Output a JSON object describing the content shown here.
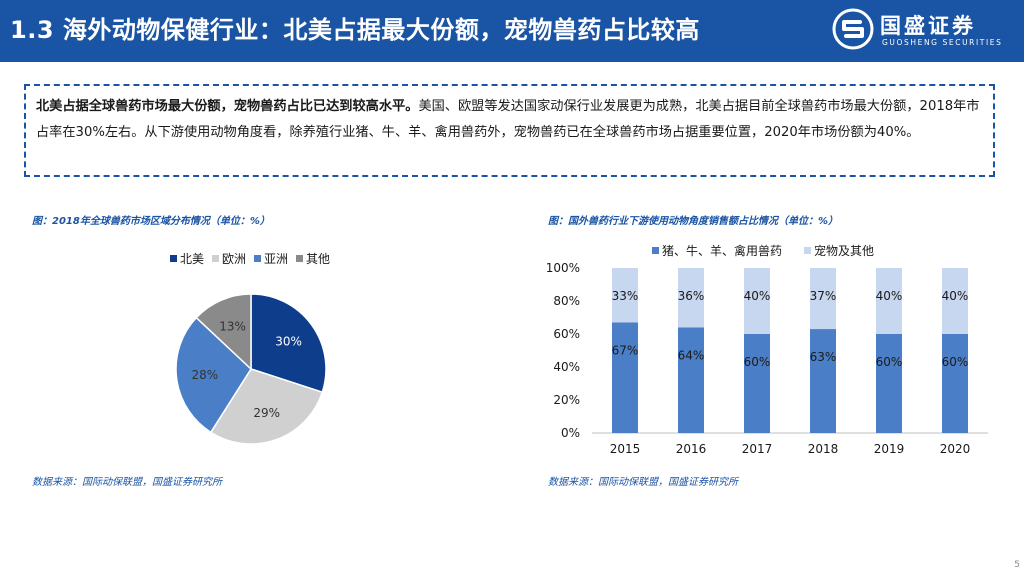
{
  "header": {
    "title": "1.3 海外动物保健行业：北美占据最大份额，宠物兽药占比较高",
    "logo_cn": "国盛证券",
    "logo_en": "GUOSHENG SECURITIES"
  },
  "summary": {
    "bold": "北美占据全球兽药市场最大份额，宠物兽药占比已达到较高水平。",
    "text": "美国、欧盟等发达国家动保行业发展更为成熟，北美占据目前全球兽药市场最大份额，2018年市占率在30%左右。从下游使用动物角度看，除养殖行业猪、牛、羊、禽用兽药外，宠物兽药已在全球兽药市场占据重要位置，2020年市场份额为40%。"
  },
  "left_chart": {
    "caption": "图：2018年全球兽药市场区域分布情况（单位：%）",
    "source": "数据来源：国际动保联盟，国盛证券研究所"
  },
  "right_chart": {
    "caption": "图：国外兽药行业下游使用动物角度销售额占比情况（单位：%）",
    "source": "数据来源：国际动保联盟，国盛证券研究所"
  },
  "page_number": "5",
  "chart_data": [
    {
      "type": "pie",
      "labels": [
        "北美",
        "欧洲",
        "亚洲",
        "其他"
      ],
      "values": [
        30,
        29,
        28,
        13
      ],
      "value_labels": [
        "30%",
        "29%",
        "28%",
        "13%"
      ],
      "colors": [
        "#0e3d8c",
        "#d0d0d0",
        "#4a7fc8",
        "#8a8a8a"
      ],
      "legend_position": "top"
    },
    {
      "type": "bar",
      "stacked": true,
      "categories": [
        "2015",
        "2016",
        "2017",
        "2018",
        "2019",
        "2020"
      ],
      "series": [
        {
          "name": "猪、牛、羊、禽用兽药",
          "values": [
            67,
            64,
            60,
            63,
            60,
            60
          ],
          "labels": [
            "67%",
            "64%",
            "60%",
            "63%",
            "60%",
            "60%"
          ],
          "color": "#4a7fc8"
        },
        {
          "name": "宠物及其他",
          "values": [
            33,
            36,
            40,
            37,
            40,
            40
          ],
          "labels": [
            "33%",
            "36%",
            "40%",
            "37%",
            "40%",
            "40%"
          ],
          "color": "#c6d7ef"
        }
      ],
      "ylim": [
        0,
        100
      ],
      "yticks": [
        "0%",
        "20%",
        "40%",
        "60%",
        "80%",
        "100%"
      ],
      "grid": false,
      "legend_position": "top"
    }
  ]
}
